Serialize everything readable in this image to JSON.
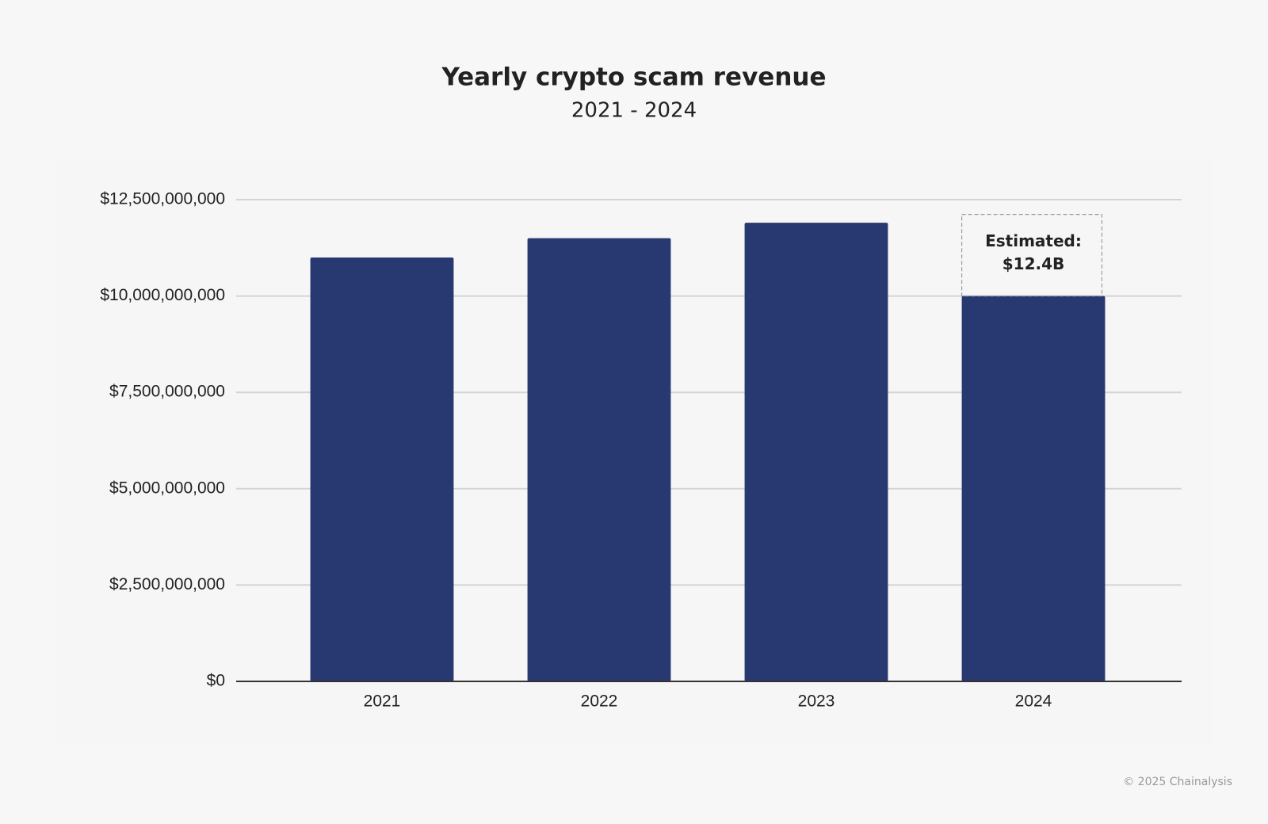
{
  "chart_data": {
    "type": "bar",
    "title": "Yearly crypto scam revenue",
    "subtitle": "2021 - 2024",
    "categories": [
      "2021",
      "2022",
      "2023",
      "2024"
    ],
    "values": [
      11000000000,
      11500000000,
      11900000000,
      10000000000
    ],
    "color": "#283971",
    "ylim": [
      0,
      12500000000
    ],
    "yticks": [
      {
        "value": 0,
        "label": "$0"
      },
      {
        "value": 2500000000,
        "label": "$2,500,000,000"
      },
      {
        "value": 5000000000,
        "label": "$5,000,000,000"
      },
      {
        "value": 7500000000,
        "label": "$7,500,000,000"
      },
      {
        "value": 10000000000,
        "label": "$10,000,000,000"
      },
      {
        "value": 12500000000,
        "label": "$12,500,000,000"
      }
    ],
    "grid": true,
    "annotation": [
      "Estimated:",
      "$12.4B"
    ]
  },
  "footer": "© 2025 Chainalysis"
}
